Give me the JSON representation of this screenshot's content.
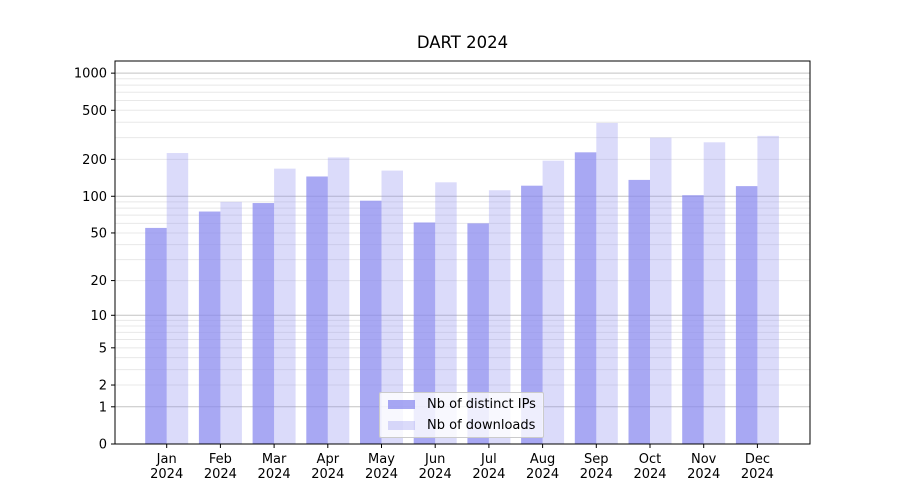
{
  "chart_data": {
    "type": "bar",
    "title": "DART 2024",
    "categories": [
      "Jan 2024",
      "Feb 2024",
      "Mar 2024",
      "Apr 2024",
      "May 2024",
      "Jun 2024",
      "Jul 2024",
      "Aug 2024",
      "Sep 2024",
      "Oct 2024",
      "Nov 2024",
      "Dec 2024"
    ],
    "series": [
      {
        "name": "Nb of distinct IPs",
        "color": "rgba(136,136,238,0.73)",
        "values": [
          55,
          75,
          88,
          145,
          92,
          61,
          60,
          122,
          228,
          136,
          102,
          121
        ]
      },
      {
        "name": "Nb of downloads",
        "color": "rgba(136,136,238,0.30)",
        "values": [
          225,
          90,
          168,
          207,
          162,
          130,
          112,
          195,
          395,
          300,
          275,
          310
        ]
      }
    ],
    "xlabel": "",
    "ylabel": "",
    "yscale": "log10(1+v)",
    "ytick_values": [
      0,
      1,
      2,
      5,
      10,
      20,
      50,
      100,
      200,
      500,
      1000
    ],
    "ylim": [
      0,
      1260
    ],
    "grid": "on",
    "legend_position": "lower center",
    "colors": {
      "major_gridline": "#c3c3c3",
      "minor_gridline": "#e8e8e8",
      "axis": "#000000",
      "background": "#ffffff"
    }
  }
}
